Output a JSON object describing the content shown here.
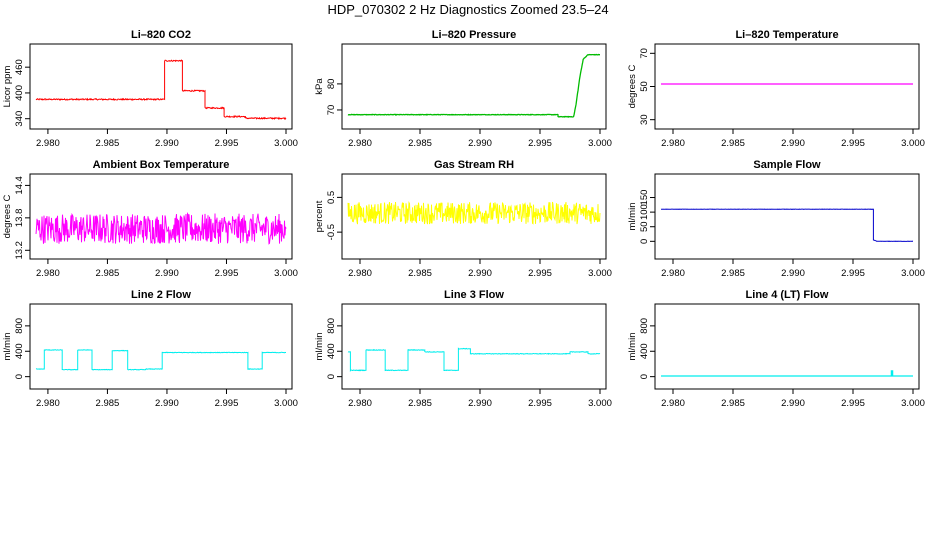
{
  "page": {
    "title": "HDP_070302  2 Hz Diagnostics Zoomed 23.5–24"
  },
  "chart_data": [
    {
      "type": "line",
      "title": "Li–820 CO2",
      "ylabel": "Licor ppm",
      "color": "#ff0000",
      "xlim": [
        2.979,
        3.0
      ],
      "ylim": [
        330,
        500
      ],
      "xticks": [
        "2.980",
        "2.985",
        "2.990",
        "2.995",
        "3.000"
      ],
      "yticks": [
        "340",
        "400",
        "460"
      ],
      "series": [
        {
          "noise": 1.5,
          "x": [
            2.979,
            2.9898,
            2.9898,
            2.9913,
            2.9913,
            2.9932,
            2.9932,
            2.9948,
            2.9948,
            2.9966,
            2.9966,
            3.0
          ],
          "values": [
            385,
            385,
            475,
            475,
            405,
            405,
            365,
            365,
            345,
            345,
            341,
            341
          ]
        }
      ]
    },
    {
      "type": "line",
      "title": "Li–820 Pressure",
      "ylabel": "kPa",
      "color": "#00bb00",
      "xlim": [
        2.979,
        3.0
      ],
      "ylim": [
        65,
        93
      ],
      "xticks": [
        "2.980",
        "2.985",
        "2.990",
        "2.995",
        "3.000"
      ],
      "yticks": [
        "70",
        "80"
      ],
      "series": [
        {
          "noise": 0.1,
          "x": [
            2.979,
            2.9965,
            2.9965,
            2.9978,
            2.998,
            2.9983,
            2.9986,
            2.999,
            3.0
          ],
          "values": [
            68.2,
            68.2,
            67.4,
            67.4,
            72,
            82,
            89.5,
            91.2,
            91.2
          ]
        }
      ]
    },
    {
      "type": "line",
      "title": "Li–820 Temperature",
      "ylabel": "degrees C",
      "color": "#ff00ff",
      "xlim": [
        2.979,
        3.0
      ],
      "ylim": [
        28,
        72
      ],
      "xticks": [
        "2.980",
        "2.985",
        "2.990",
        "2.995",
        "3.000"
      ],
      "yticks": [
        "30",
        "50",
        "70"
      ],
      "series": [
        {
          "noise": 0,
          "x": [
            2.979,
            3.0
          ],
          "values": [
            51.5,
            51.5
          ]
        }
      ]
    },
    {
      "type": "line",
      "title": "Ambient Box Temperature",
      "ylabel": "degrees C",
      "color": "#ff00ff",
      "xlim": [
        2.979,
        3.0
      ],
      "ylim": [
        13.15,
        14.5
      ],
      "xticks": [
        "2.980",
        "2.985",
        "2.990",
        "2.995",
        "3.000"
      ],
      "yticks": [
        "13.2",
        "13.8",
        "14.4"
      ],
      "series": [
        {
          "noise": 0.28,
          "x": [
            2.979,
            3.0
          ],
          "values": [
            13.6,
            13.6
          ]
        }
      ]
    },
    {
      "type": "line",
      "title": "Gas Stream RH",
      "ylabel": "percent",
      "color": "#ffff00",
      "xlim": [
        2.979,
        3.0
      ],
      "ylim": [
        -1.1,
        1.0
      ],
      "xticks": [
        "2.980",
        "2.985",
        "2.990",
        "2.995",
        "3.000"
      ],
      "yticks": [
        "-0.5",
        "0.5"
      ],
      "series": [
        {
          "noise": 0.32,
          "x": [
            2.979,
            3.0
          ],
          "values": [
            0.05,
            0.05
          ]
        }
      ]
    },
    {
      "type": "line",
      "title": "Sample Flow",
      "ylabel": "ml/min",
      "color": "#0000cc",
      "xlim": [
        2.979,
        3.0
      ],
      "ylim": [
        -40,
        210
      ],
      "xticks": [
        "2.980",
        "2.985",
        "2.990",
        "2.995",
        "3.000"
      ],
      "yticks": [
        "0",
        "50",
        "100",
        "150"
      ],
      "series": [
        {
          "noise": 0.5,
          "x": [
            2.979,
            2.9967,
            2.9967,
            2.997,
            3.0
          ],
          "values": [
            110,
            110,
            5,
            0,
            0
          ]
        }
      ]
    },
    {
      "type": "line",
      "title": "Line 2 Flow",
      "ylabel": "ml/min",
      "color": "#00eeee",
      "xlim": [
        2.979,
        3.0
      ],
      "ylim": [
        -100,
        1050
      ],
      "xticks": [
        "2.980",
        "2.985",
        "2.990",
        "2.995",
        "3.000"
      ],
      "yticks": [
        "0",
        "400",
        "800"
      ],
      "series": [
        {
          "noise": 4,
          "x": [
            2.979,
            2.9797,
            2.9797,
            2.9812,
            2.9812,
            2.9825,
            2.9825,
            2.9837,
            2.9837,
            2.9854,
            2.9854,
            2.9867,
            2.9867,
            2.9882,
            2.9882,
            2.9896,
            2.9896,
            2.9968,
            2.9968,
            2.998,
            2.998,
            3.0
          ],
          "values": [
            120,
            120,
            420,
            420,
            110,
            110,
            420,
            420,
            110,
            110,
            410,
            410,
            110,
            110,
            120,
            120,
            380,
            380,
            120,
            120,
            380,
            380
          ]
        }
      ]
    },
    {
      "type": "line",
      "title": "Line 3 Flow",
      "ylabel": "ml/min",
      "color": "#00eeee",
      "xlim": [
        2.979,
        3.0
      ],
      "ylim": [
        -100,
        1050
      ],
      "xticks": [
        "2.980",
        "2.985",
        "2.990",
        "2.995",
        "3.000"
      ],
      "yticks": [
        "0",
        "400",
        "800"
      ],
      "series": [
        {
          "noise": 5,
          "x": [
            2.979,
            2.9792,
            2.9792,
            2.9805,
            2.9805,
            2.9821,
            2.9821,
            2.984,
            2.984,
            2.9854,
            2.9854,
            2.987,
            2.987,
            2.9882,
            2.9882,
            2.9892,
            2.9892,
            2.9975,
            2.9975,
            2.999,
            2.999,
            3.0
          ],
          "values": [
            390,
            390,
            100,
            100,
            420,
            420,
            100,
            100,
            420,
            420,
            390,
            390,
            100,
            100,
            440,
            440,
            360,
            360,
            390,
            390,
            360,
            360
          ]
        }
      ]
    },
    {
      "type": "line",
      "title": "Line 4 (LT) Flow",
      "ylabel": "ml/min",
      "color": "#00eeee",
      "xlim": [
        2.979,
        3.0
      ],
      "ylim": [
        -100,
        1050
      ],
      "xticks": [
        "2.980",
        "2.985",
        "2.990",
        "2.995",
        "3.000"
      ],
      "yticks": [
        "0",
        "400",
        "800"
      ],
      "series": [
        {
          "noise": 0,
          "x": [
            2.979,
            2.9982,
            2.9982,
            2.9983,
            2.9983,
            3.0
          ],
          "values": [
            10,
            10,
            90,
            90,
            10,
            10
          ]
        }
      ]
    }
  ]
}
